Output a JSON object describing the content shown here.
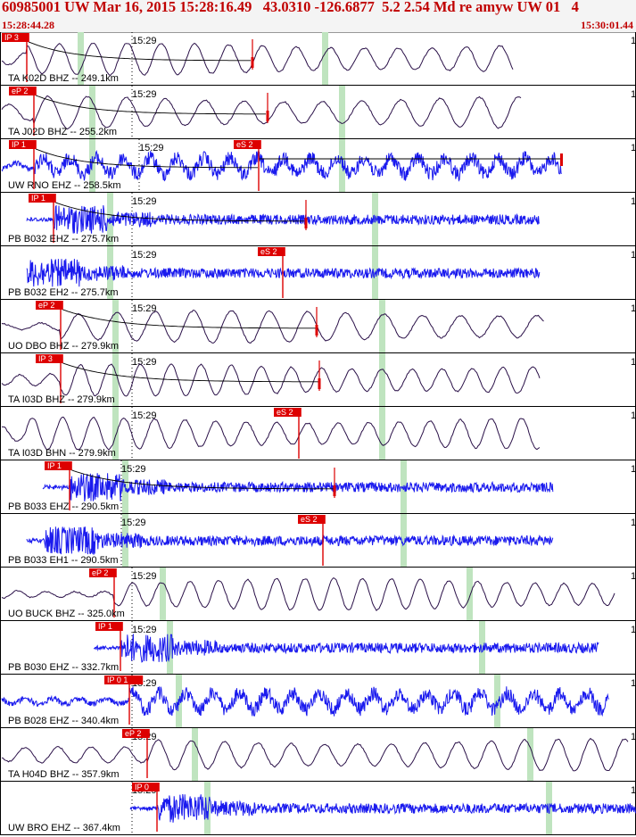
{
  "header": {
    "title": "60985001 UW Mar 16, 2015 15:28:16.49   43.0310 -126.6877  5.2 2.54 Md re amyw UW 01   4",
    "start_time": "15:28:44.28",
    "end_time": "15:30:01.44"
  },
  "time_tick_label": "15:29",
  "colors": {
    "header_text": "#c00000",
    "pick_box": "#dd0000",
    "trace_bhz": "#2a1048",
    "trace_ehz": "#1a1aee",
    "green_bar": "#bfe4bf"
  },
  "traces": [
    {
      "label": "TA K02D BHZ -- 249.1km",
      "pick": "IP 3",
      "style": "lp",
      "color": "dark",
      "p": 30,
      "s": 283,
      "g": [
        90,
        364
      ],
      "decay": true,
      "tick": 148,
      "end": 575
    },
    {
      "label": "TA J02D BHZ -- 255.2km",
      "pick": "eP 2",
      "style": "lp",
      "color": "dark",
      "p": 38,
      "s": 300,
      "g": [
        103,
        383
      ],
      "decay": true,
      "tick": 148,
      "end": 585
    },
    {
      "label": "UW RNO EHZ -- 258.5km",
      "pick": "IP 1",
      "s_pick": "eS 2",
      "style": "mixed",
      "color": "blue",
      "p": 38,
      "s": 290,
      "g": [
        103,
        383
      ],
      "decay": true,
      "tick": 156,
      "end": 630
    },
    {
      "label": "PB B032 EHZ -- 275.7km",
      "pick": "IP 1",
      "style": "hf",
      "color": "blue",
      "p": 60,
      "s": 343,
      "g": [
        123,
        420
      ],
      "decay": true,
      "tick": 148,
      "end": 605
    },
    {
      "label": "PB B032 EH2 -- 275.7km",
      "s_pick": "eS 2",
      "style": "hf",
      "color": "blue",
      "p": 30,
      "s": 317,
      "g": [
        123,
        420
      ],
      "decay": false,
      "tick": 148,
      "end": 605
    },
    {
      "label": "UO DBO BHZ -- 279.9km",
      "pick": "eP 2",
      "style": "lp",
      "color": "dark",
      "p": 68,
      "s": 355,
      "g": [
        129,
        428
      ],
      "decay": true,
      "tick": 148,
      "end": 610
    },
    {
      "label": "TA I03D BHZ -- 279.9km",
      "pick": "IP 3",
      "style": "lp",
      "color": "dark",
      "p": 68,
      "s": 358,
      "g": [
        129,
        428
      ],
      "decay": true,
      "tick": 148,
      "end": 605
    },
    {
      "label": "TA I03D BHN -- 279.9km",
      "s_pick": "eS 2",
      "style": "lp",
      "color": "dark",
      "p": 30,
      "s": 335,
      "g": [
        129,
        428
      ],
      "decay": false,
      "tick": 148,
      "end": 605
    },
    {
      "label": "PB B033 EHZ -- 290.5km",
      "pick": "IP 1",
      "style": "hf",
      "color": "blue",
      "p": 78,
      "s": 375,
      "g": [
        140,
        452
      ],
      "decay": true,
      "tick": 136,
      "end": 620
    },
    {
      "label": "PB B033 EH1 -- 290.5km",
      "s_pick": "eS 2",
      "style": "hf",
      "color": "blue",
      "p": 50,
      "s": 362,
      "g": [
        140,
        452
      ],
      "decay": false,
      "tick": 136,
      "end": 620
    },
    {
      "label": "UO BUCK BHZ -- 325.0km",
      "pick": "eP 2",
      "style": "lp",
      "color": "dark",
      "p": 128,
      "s": null,
      "g": [
        182,
        526
      ],
      "decay": false,
      "tick": 148,
      "end": 690
    },
    {
      "label": "PB B030 EHZ -- 332.7km",
      "pick": "IP 1",
      "style": "hf",
      "color": "blue",
      "p": 135,
      "s": null,
      "g": [
        190,
        540
      ],
      "decay": false,
      "tick": 148,
      "end": 672
    },
    {
      "label": "PB B028 EHZ -- 340.4km",
      "pick": "IP 0 1",
      "style": "mixed",
      "color": "blue",
      "p": 145,
      "s": null,
      "g": [
        200,
        557
      ],
      "decay": false,
      "tick": 148,
      "end": 683
    },
    {
      "label": "TA H04D BHZ -- 357.9km",
      "pick": "eP 2",
      "style": "lp",
      "color": "dark",
      "p": 165,
      "s": null,
      "g": [
        218,
        594
      ],
      "decay": false,
      "tick": 148,
      "end": 705
    },
    {
      "label": "UW BRO EHZ -- 367.4km",
      "pick": "IP 0",
      "style": "hf",
      "color": "blue",
      "p": 176,
      "s": null,
      "g": [
        232,
        615
      ],
      "decay": false,
      "tick": 148,
      "end": 713
    }
  ]
}
